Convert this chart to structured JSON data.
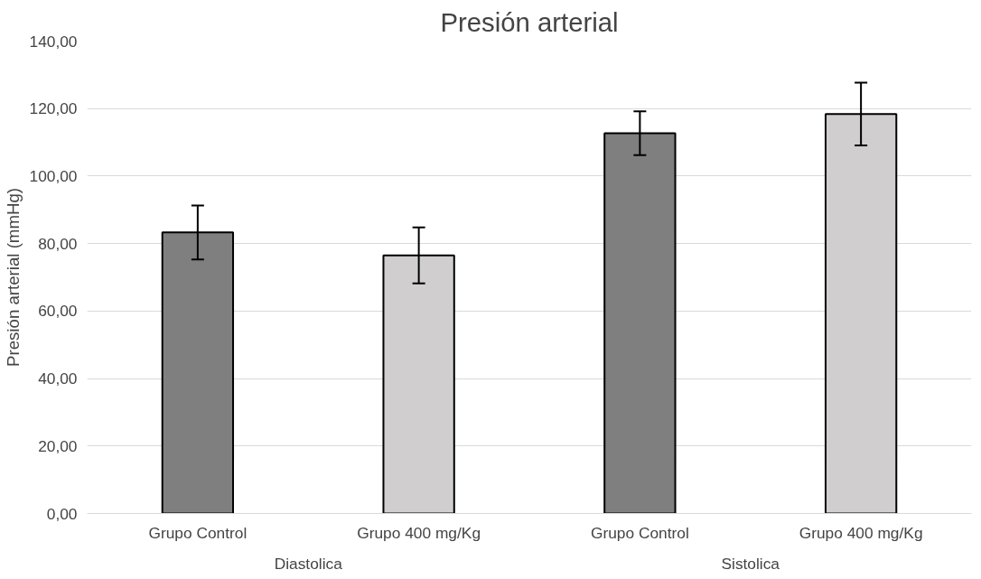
{
  "chart_data": {
    "type": "bar",
    "title": "Presión arterial",
    "ylabel": "Presión arterial (mmHg)",
    "categories": [
      "Grupo Control",
      "Grupo 400 mg/Kg",
      "Grupo Control",
      "Grupo 400 mg/Kg"
    ],
    "values": [
      83.3,
      76.5,
      112.7,
      118.4
    ],
    "errors": [
      8,
      8.3,
      6.5,
      9.3
    ],
    "colors": [
      "#7f7f7f",
      "#d0cece",
      "#7f7f7f",
      "#d0cece"
    ],
    "annotations": [
      "Diastolica",
      "Sistolica"
    ],
    "ylim": [
      0,
      140
    ],
    "yticks": [
      {
        "value": 0,
        "label": "0,00"
      },
      {
        "value": 20,
        "label": "20,00"
      },
      {
        "value": 40,
        "label": "40,00"
      },
      {
        "value": 60,
        "label": "60,00"
      },
      {
        "value": 80,
        "label": "80,00"
      },
      {
        "value": 100,
        "label": "100,00"
      },
      {
        "value": 120,
        "label": "120,00"
      },
      {
        "value": 140,
        "label": "140,00"
      }
    ],
    "grid": "y"
  }
}
